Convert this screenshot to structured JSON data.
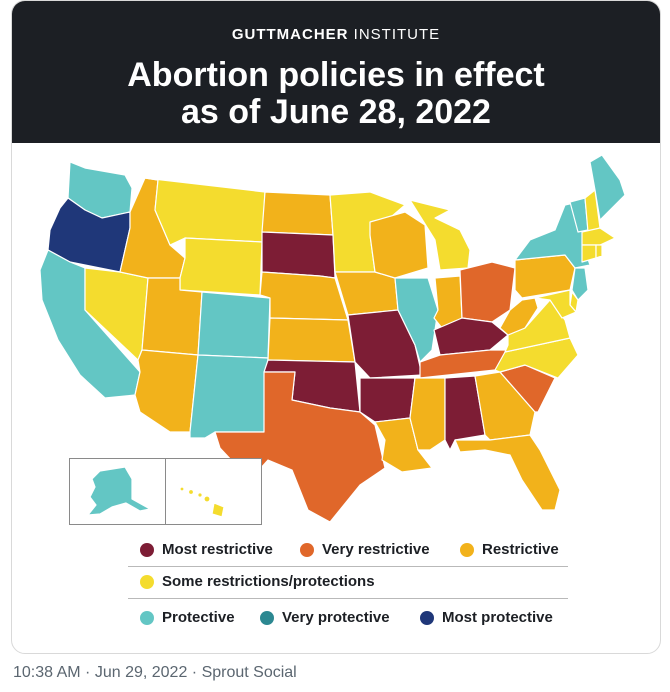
{
  "brand": {
    "bold": "GUTTMACHER",
    "light": "INSTITUTE"
  },
  "title": {
    "line1": "Abortion policies in effect",
    "line2": "as of June 28, 2022"
  },
  "colors": {
    "most_restrictive": "#7d1d35",
    "very_restrictive": "#e0672a",
    "restrictive": "#f2b21b",
    "some": "#f4dc2e",
    "protective": "#63c6c4",
    "very_protective": "#2c8891",
    "most_protective": "#1f3779"
  },
  "legend": {
    "most_restrictive": "Most restrictive",
    "very_restrictive": "Very restrictive",
    "restrictive": "Restrictive",
    "some": "Some restrictions/protections",
    "protective": "Protective",
    "very_protective": "Very protective",
    "most_protective": "Most protective"
  },
  "states": {
    "WA": "protective",
    "OR": "most_protective",
    "CA": "protective",
    "NV": "some",
    "ID": "restrictive",
    "MT": "some",
    "WY": "some",
    "UT": "restrictive",
    "AZ": "restrictive",
    "CO": "protective",
    "NM": "protective",
    "ND": "restrictive",
    "SD": "most_restrictive",
    "NE": "restrictive",
    "KS": "restrictive",
    "OK": "most_restrictive",
    "TX": "very_restrictive",
    "MN": "some",
    "IA": "restrictive",
    "MO": "most_restrictive",
    "AR": "most_restrictive",
    "LA": "restrictive",
    "WI": "restrictive",
    "IL": "protective",
    "MI": "some",
    "IN": "restrictive",
    "OH": "very_restrictive",
    "KY": "most_restrictive",
    "TN": "very_restrictive",
    "MS": "restrictive",
    "AL": "most_restrictive",
    "GA": "restrictive",
    "FL": "restrictive",
    "SC": "very_restrictive",
    "NC": "some",
    "VA": "some",
    "WV": "restrictive",
    "PA": "restrictive",
    "NY": "protective",
    "VT": "protective",
    "NH": "some",
    "ME": "protective",
    "MA": "some",
    "CT": "some",
    "RI": "some",
    "NJ": "protective",
    "DE": "some",
    "MD": "some",
    "AK": "protective",
    "HI": "some"
  },
  "footer": "10:38 AM · Jun 29, 2022 · Sprout Social"
}
